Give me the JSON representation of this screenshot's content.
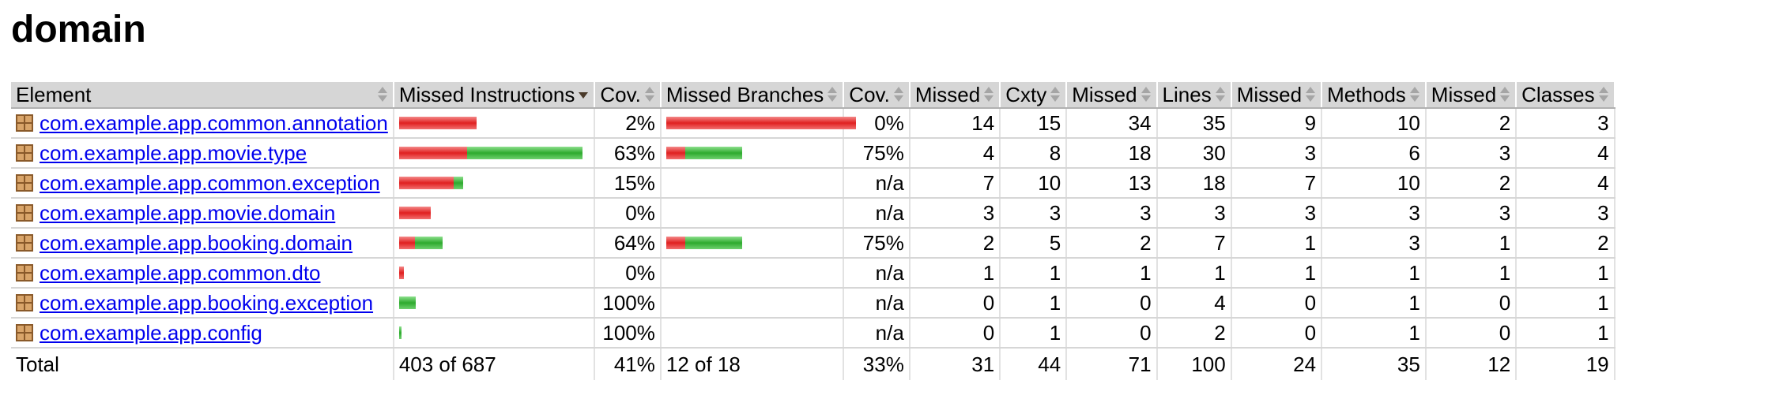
{
  "page_title": "domain",
  "colors": {
    "missed": "#e02020",
    "covered": "#2eaa2e",
    "link": "#0000ee",
    "header_bg": "#d6d6d6"
  },
  "headers": {
    "element": "Element",
    "missed_instructions": "Missed Instructions",
    "instr_cov": "Cov.",
    "missed_branches": "Missed Branches",
    "branch_cov": "Cov.",
    "missed_cxty": "Missed",
    "cxty": "Cxty",
    "missed_lines": "Missed",
    "lines": "Lines",
    "missed_methods": "Missed",
    "methods": "Methods",
    "missed_classes": "Missed",
    "classes": "Classes"
  },
  "rows": [
    {
      "name": "com.example.app.common.annotation",
      "instr_missed": 0.425,
      "instr_covered": 0.0,
      "instr_cov": "2%",
      "branch_missed": 1.0,
      "branch_covered": 0.0,
      "branch_cov": "0%",
      "missed_cxty": "14",
      "cxty": "15",
      "missed_lines": "34",
      "lines": "35",
      "missed_methods": "9",
      "methods": "10",
      "missed_classes": "2",
      "classes": "3"
    },
    {
      "name": "com.example.app.movie.type",
      "instr_missed": 0.37,
      "instr_covered": 0.63,
      "instr_cov": "63%",
      "branch_missed": 0.1,
      "branch_covered": 0.3,
      "branch_cov": "75%",
      "missed_cxty": "4",
      "cxty": "8",
      "missed_lines": "18",
      "lines": "30",
      "missed_methods": "3",
      "methods": "6",
      "missed_classes": "3",
      "classes": "4"
    },
    {
      "name": "com.example.app.common.exception",
      "instr_missed": 0.3,
      "instr_covered": 0.05,
      "instr_cov": "15%",
      "branch_missed": 0,
      "branch_covered": 0,
      "branch_cov": "n/a",
      "missed_cxty": "7",
      "cxty": "10",
      "missed_lines": "13",
      "lines": "18",
      "missed_methods": "7",
      "methods": "10",
      "missed_classes": "2",
      "classes": "4"
    },
    {
      "name": "com.example.app.movie.domain",
      "instr_missed": 0.175,
      "instr_covered": 0.0,
      "instr_cov": "0%",
      "branch_missed": 0,
      "branch_covered": 0,
      "branch_cov": "n/a",
      "missed_cxty": "3",
      "cxty": "3",
      "missed_lines": "3",
      "lines": "3",
      "missed_methods": "3",
      "methods": "3",
      "missed_classes": "3",
      "classes": "3"
    },
    {
      "name": "com.example.app.booking.domain",
      "instr_missed": 0.085,
      "instr_covered": 0.155,
      "instr_cov": "64%",
      "branch_missed": 0.1,
      "branch_covered": 0.3,
      "branch_cov": "75%",
      "missed_cxty": "2",
      "cxty": "5",
      "missed_lines": "2",
      "lines": "7",
      "missed_methods": "1",
      "methods": "3",
      "missed_classes": "1",
      "classes": "2"
    },
    {
      "name": "com.example.app.common.dto",
      "instr_missed": 0.025,
      "instr_covered": 0.0,
      "instr_cov": "0%",
      "branch_missed": 0,
      "branch_covered": 0,
      "branch_cov": "n/a",
      "missed_cxty": "1",
      "cxty": "1",
      "missed_lines": "1",
      "lines": "1",
      "missed_methods": "1",
      "methods": "1",
      "missed_classes": "1",
      "classes": "1"
    },
    {
      "name": "com.example.app.booking.exception",
      "instr_missed": 0.0,
      "instr_covered": 0.09,
      "instr_cov": "100%",
      "branch_missed": 0,
      "branch_covered": 0,
      "branch_cov": "n/a",
      "missed_cxty": "0",
      "cxty": "1",
      "missed_lines": "0",
      "lines": "4",
      "missed_methods": "0",
      "methods": "1",
      "missed_classes": "0",
      "classes": "1"
    },
    {
      "name": "com.example.app.config",
      "instr_missed": 0.0,
      "instr_covered": 0.015,
      "instr_cov": "100%",
      "branch_missed": 0,
      "branch_covered": 0,
      "branch_cov": "n/a",
      "missed_cxty": "0",
      "cxty": "1",
      "missed_lines": "0",
      "lines": "2",
      "missed_methods": "0",
      "methods": "1",
      "missed_classes": "0",
      "classes": "1"
    }
  ],
  "total": {
    "label": "Total",
    "instr": "403 of 687",
    "instr_cov": "41%",
    "branch": "12 of 18",
    "branch_cov": "33%",
    "missed_cxty": "31",
    "cxty": "44",
    "missed_lines": "71",
    "lines": "100",
    "missed_methods": "24",
    "methods": "35",
    "missed_classes": "12",
    "classes": "19"
  }
}
